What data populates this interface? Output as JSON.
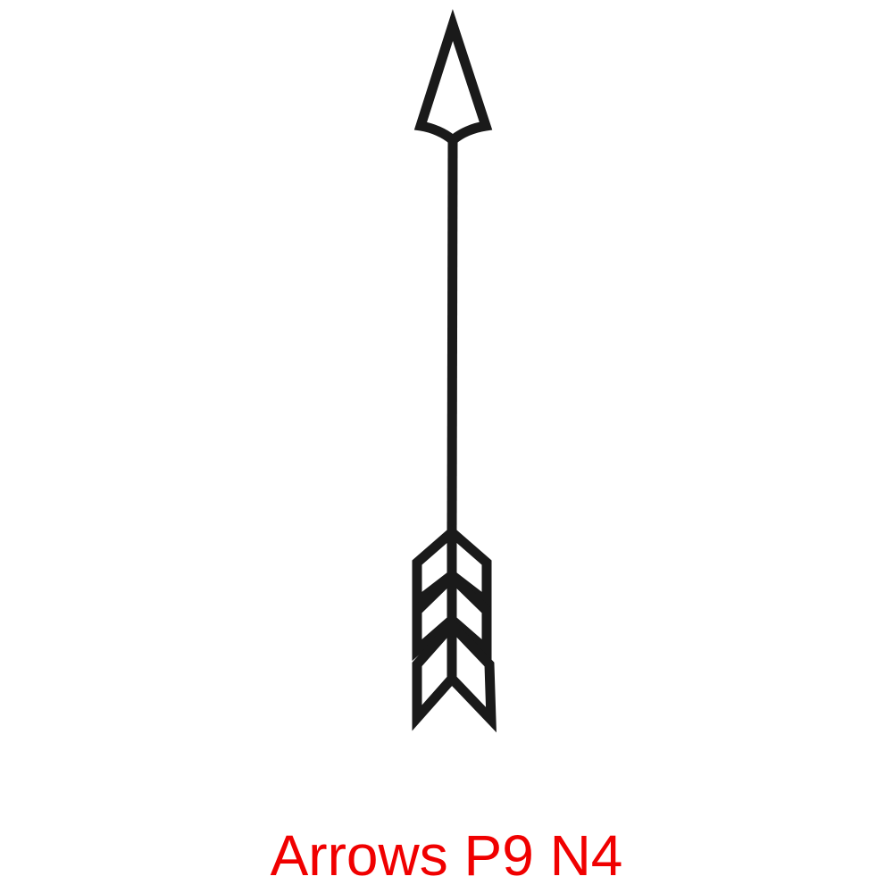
{
  "caption": {
    "text": "Arrows P9 N4",
    "color": "#f00000"
  },
  "graphic": {
    "icon": "arrow-icon",
    "stroke_color": "#1a1a1a",
    "fill_color": "#ffffff"
  }
}
